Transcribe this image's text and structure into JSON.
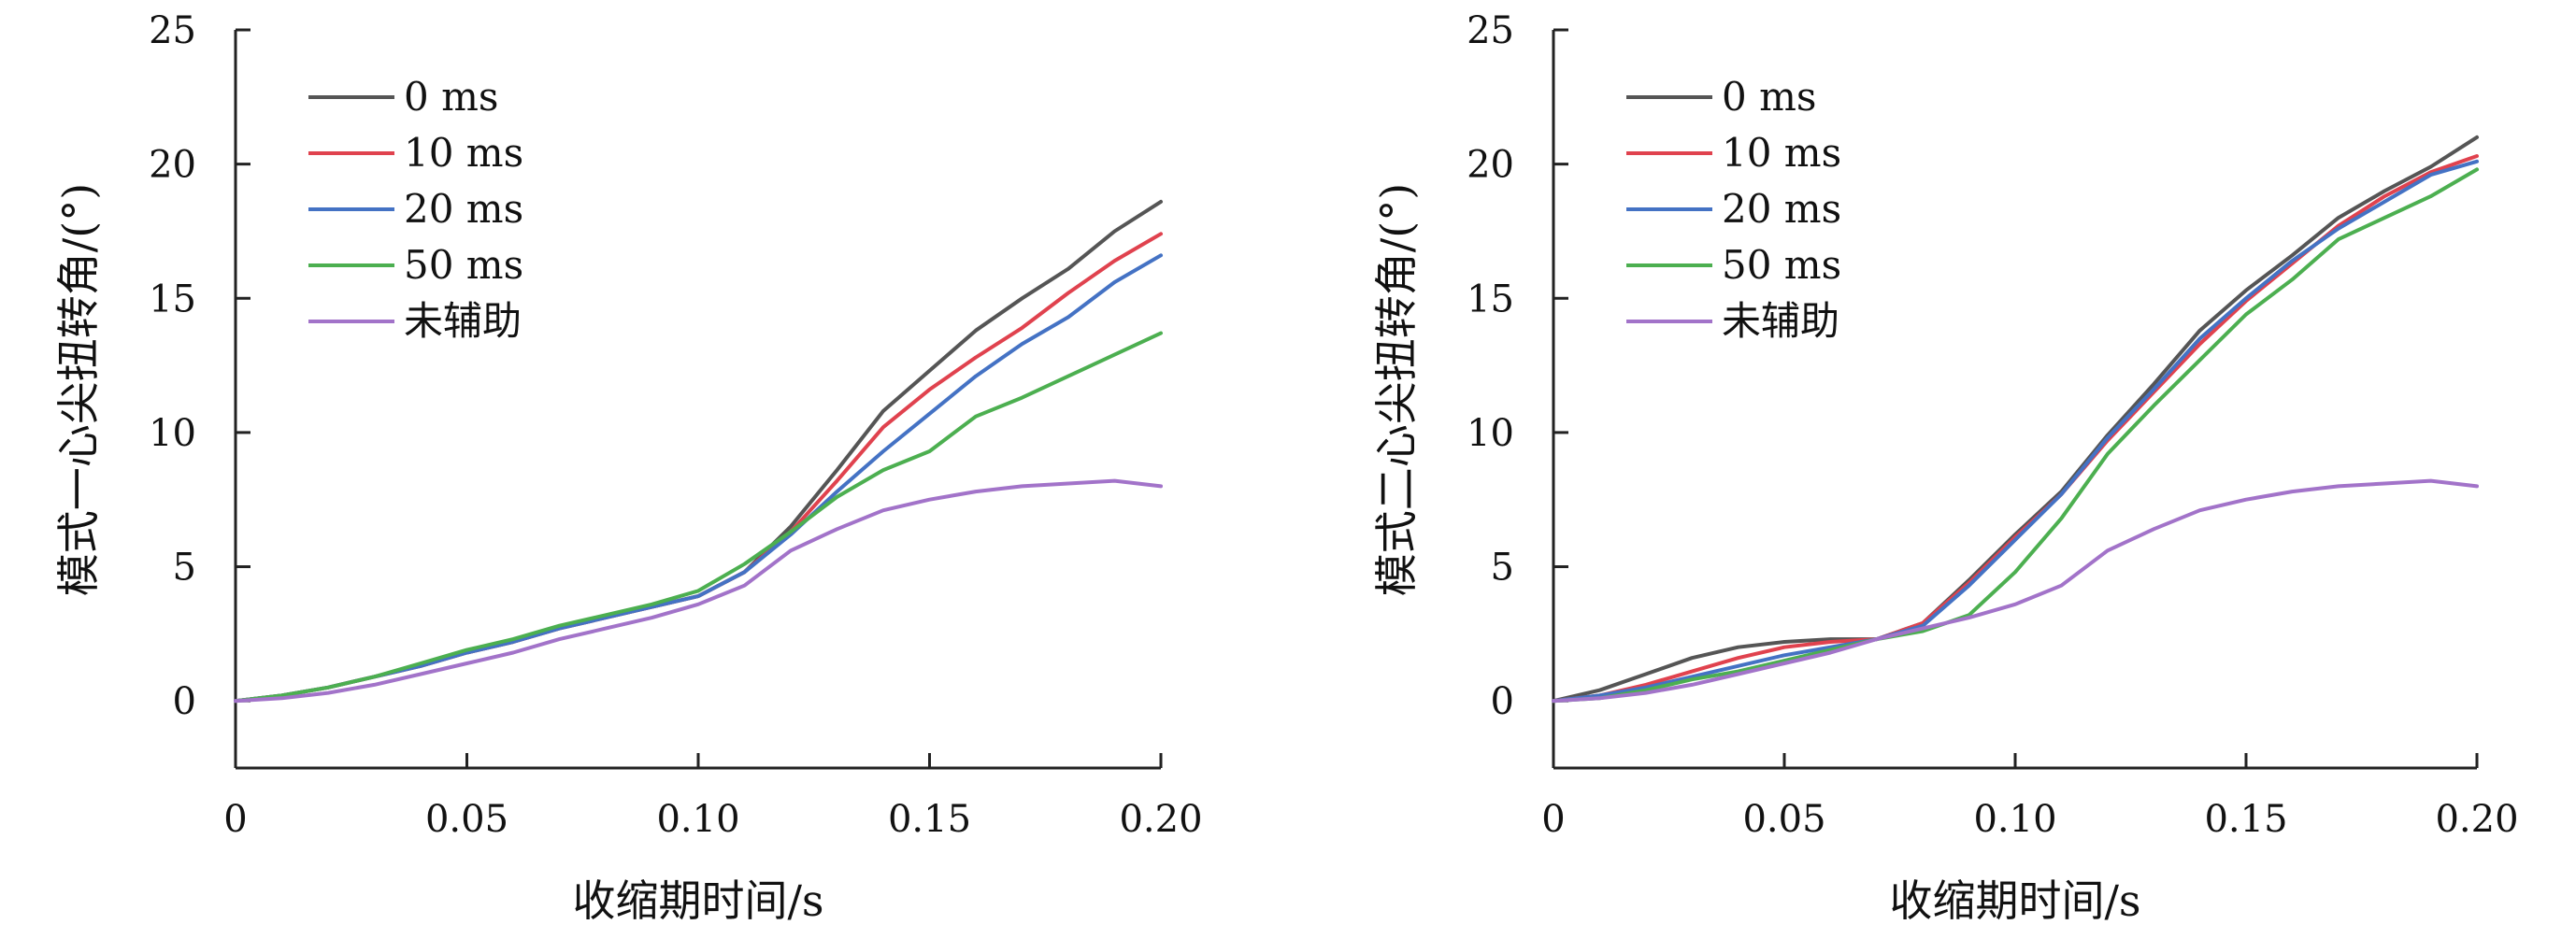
{
  "chart_data": [
    {
      "type": "line",
      "title": "",
      "xlabel": "收缩期时间/s",
      "ylabel": "模式一心尖扭转角/(°)",
      "xlim": [
        0,
        0.2
      ],
      "ylim": [
        -2.5,
        25
      ],
      "x_tick_labels": [
        "0",
        "0.05",
        "0.10",
        "0.15",
        "0.20"
      ],
      "x_tick_values": [
        0,
        0.05,
        0.1,
        0.15,
        0.2
      ],
      "y_tick_labels": [
        "0",
        "5",
        "10",
        "15",
        "20",
        "25"
      ],
      "y_tick_values": [
        0,
        5,
        10,
        15,
        20,
        25
      ],
      "grid": false,
      "legend_position": "top-left",
      "series": [
        {
          "name": "0 ms",
          "color": "#555555",
          "x": [
            0,
            0.01,
            0.02,
            0.03,
            0.04,
            0.05,
            0.06,
            0.07,
            0.08,
            0.09,
            0.1,
            0.11,
            0.12,
            0.13,
            0.14,
            0.15,
            0.16,
            0.17,
            0.18,
            0.19,
            0.2
          ],
          "y": [
            0,
            0.2,
            0.5,
            0.9,
            1.3,
            1.8,
            2.2,
            2.7,
            3.1,
            3.5,
            3.9,
            4.8,
            6.5,
            8.6,
            10.8,
            12.3,
            13.8,
            15.0,
            16.1,
            17.5,
            18.6
          ]
        },
        {
          "name": "10 ms",
          "color": "#e0424e",
          "x": [
            0,
            0.01,
            0.02,
            0.03,
            0.04,
            0.05,
            0.06,
            0.07,
            0.08,
            0.09,
            0.1,
            0.11,
            0.12,
            0.13,
            0.14,
            0.15,
            0.16,
            0.17,
            0.18,
            0.19,
            0.2
          ],
          "y": [
            0,
            0.2,
            0.5,
            0.9,
            1.3,
            1.8,
            2.2,
            2.7,
            3.1,
            3.5,
            3.9,
            4.8,
            6.3,
            8.2,
            10.2,
            11.6,
            12.8,
            13.9,
            15.2,
            16.4,
            17.4
          ]
        },
        {
          "name": "20 ms",
          "color": "#4472c4",
          "x": [
            0,
            0.01,
            0.02,
            0.03,
            0.04,
            0.05,
            0.06,
            0.07,
            0.08,
            0.09,
            0.1,
            0.11,
            0.12,
            0.13,
            0.14,
            0.15,
            0.16,
            0.17,
            0.18,
            0.19,
            0.2
          ],
          "y": [
            0,
            0.2,
            0.5,
            0.9,
            1.3,
            1.8,
            2.2,
            2.7,
            3.1,
            3.5,
            3.9,
            4.8,
            6.2,
            7.8,
            9.3,
            10.7,
            12.1,
            13.3,
            14.3,
            15.6,
            16.6
          ]
        },
        {
          "name": "50 ms",
          "color": "#4caf50",
          "x": [
            0,
            0.01,
            0.02,
            0.03,
            0.04,
            0.05,
            0.06,
            0.07,
            0.08,
            0.09,
            0.1,
            0.11,
            0.12,
            0.13,
            0.14,
            0.15,
            0.16,
            0.17,
            0.18,
            0.19,
            0.2
          ],
          "y": [
            0,
            0.2,
            0.5,
            0.9,
            1.4,
            1.9,
            2.3,
            2.8,
            3.2,
            3.6,
            4.1,
            5.1,
            6.3,
            7.6,
            8.6,
            9.3,
            10.6,
            11.3,
            12.1,
            12.9,
            13.7
          ]
        },
        {
          "name": "未辅助",
          "color": "#a273c9",
          "x": [
            0,
            0.01,
            0.02,
            0.03,
            0.04,
            0.05,
            0.06,
            0.07,
            0.08,
            0.09,
            0.1,
            0.11,
            0.12,
            0.13,
            0.14,
            0.15,
            0.16,
            0.17,
            0.18,
            0.19,
            0.2
          ],
          "y": [
            0,
            0.1,
            0.3,
            0.6,
            1.0,
            1.4,
            1.8,
            2.3,
            2.7,
            3.1,
            3.6,
            4.3,
            5.6,
            6.4,
            7.1,
            7.5,
            7.8,
            8.0,
            8.1,
            8.2,
            8.0
          ]
        }
      ]
    },
    {
      "type": "line",
      "title": "",
      "xlabel": "收缩期时间/s",
      "ylabel": "模式二心尖扭转角/(°)",
      "xlim": [
        0,
        0.2
      ],
      "ylim": [
        -2.5,
        25
      ],
      "x_tick_labels": [
        "0",
        "0.05",
        "0.10",
        "0.15",
        "0.20"
      ],
      "x_tick_values": [
        0,
        0.05,
        0.1,
        0.15,
        0.2
      ],
      "y_tick_labels": [
        "0",
        "5",
        "10",
        "15",
        "20",
        "25"
      ],
      "y_tick_values": [
        0,
        5,
        10,
        15,
        20,
        25
      ],
      "grid": false,
      "legend_position": "top-left",
      "series": [
        {
          "name": "0 ms",
          "color": "#555555",
          "x": [
            0,
            0.01,
            0.02,
            0.03,
            0.04,
            0.05,
            0.06,
            0.07,
            0.08,
            0.09,
            0.1,
            0.11,
            0.12,
            0.13,
            0.14,
            0.15,
            0.16,
            0.17,
            0.18,
            0.19,
            0.2
          ],
          "y": [
            0,
            0.4,
            1.0,
            1.6,
            2.0,
            2.2,
            2.3,
            2.3,
            2.9,
            4.5,
            6.2,
            7.8,
            9.9,
            11.8,
            13.8,
            15.3,
            16.6,
            18.0,
            19.0,
            19.9,
            21.0
          ]
        },
        {
          "name": "10 ms",
          "color": "#e0424e",
          "x": [
            0,
            0.01,
            0.02,
            0.03,
            0.04,
            0.05,
            0.06,
            0.07,
            0.08,
            0.09,
            0.1,
            0.11,
            0.12,
            0.13,
            0.14,
            0.15,
            0.16,
            0.17,
            0.18,
            0.19,
            0.2
          ],
          "y": [
            0,
            0.2,
            0.6,
            1.1,
            1.6,
            2.0,
            2.2,
            2.3,
            2.9,
            4.4,
            6.1,
            7.7,
            9.7,
            11.5,
            13.3,
            14.9,
            16.3,
            17.7,
            18.8,
            19.7,
            20.3
          ]
        },
        {
          "name": "20 ms",
          "color": "#4472c4",
          "x": [
            0,
            0.01,
            0.02,
            0.03,
            0.04,
            0.05,
            0.06,
            0.07,
            0.08,
            0.09,
            0.1,
            0.11,
            0.12,
            0.13,
            0.14,
            0.15,
            0.16,
            0.17,
            0.18,
            0.19,
            0.2
          ],
          "y": [
            0,
            0.2,
            0.5,
            0.9,
            1.3,
            1.7,
            2.0,
            2.3,
            2.8,
            4.3,
            6.0,
            7.7,
            9.8,
            11.6,
            13.5,
            15.0,
            16.4,
            17.6,
            18.6,
            19.6,
            20.1
          ]
        },
        {
          "name": "50 ms",
          "color": "#4caf50",
          "x": [
            0,
            0.01,
            0.02,
            0.03,
            0.04,
            0.05,
            0.06,
            0.07,
            0.08,
            0.09,
            0.1,
            0.11,
            0.12,
            0.13,
            0.14,
            0.15,
            0.16,
            0.17,
            0.18,
            0.19,
            0.2
          ],
          "y": [
            0,
            0.1,
            0.4,
            0.8,
            1.1,
            1.5,
            1.9,
            2.3,
            2.6,
            3.2,
            4.8,
            6.8,
            9.2,
            11.0,
            12.7,
            14.4,
            15.7,
            17.2,
            18.0,
            18.8,
            19.8
          ]
        },
        {
          "name": "未辅助",
          "color": "#a273c9",
          "x": [
            0,
            0.01,
            0.02,
            0.03,
            0.04,
            0.05,
            0.06,
            0.07,
            0.08,
            0.09,
            0.1,
            0.11,
            0.12,
            0.13,
            0.14,
            0.15,
            0.16,
            0.17,
            0.18,
            0.19,
            0.2
          ],
          "y": [
            0,
            0.1,
            0.3,
            0.6,
            1.0,
            1.4,
            1.8,
            2.3,
            2.7,
            3.1,
            3.6,
            4.3,
            5.6,
            6.4,
            7.1,
            7.5,
            7.8,
            8.0,
            8.1,
            8.2,
            8.0
          ]
        }
      ]
    }
  ]
}
